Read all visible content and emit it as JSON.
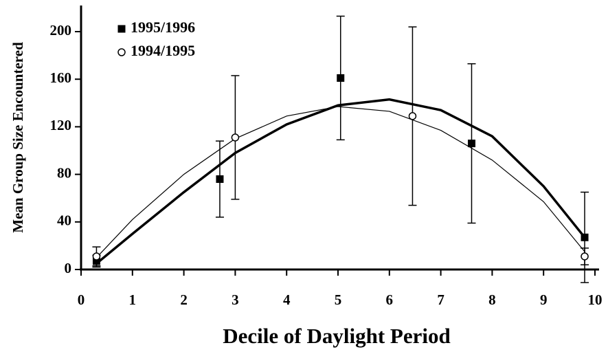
{
  "chart_data": {
    "type": "scatter",
    "x_label": "Decile of Daylight Period",
    "y_label": "Mean Group Size Encountered",
    "xlim": [
      0,
      10
    ],
    "xticks": [
      0,
      1,
      2,
      3,
      4,
      5,
      6,
      7,
      8,
      9,
      10
    ],
    "ylim": [
      0,
      200
    ],
    "yticks": [
      0,
      40,
      80,
      120,
      160,
      200
    ],
    "legend": "upper left",
    "series": [
      {
        "name": "1995/1996",
        "color": "#000000",
        "marker": "square",
        "x": [
          0.3,
          2.7,
          5.05,
          7.6,
          9.8
        ],
        "values": [
          7,
          76,
          161,
          106,
          27
        ],
        "errors": [
          5,
          32,
          52,
          67,
          38
        ],
        "fit": {
          "x": [
            0.3,
            1,
            2,
            3,
            4,
            5,
            6,
            7,
            8,
            9,
            9.8
          ],
          "y": [
            5,
            30,
            65,
            98,
            122,
            138,
            143,
            134,
            112,
            70,
            27
          ]
        }
      },
      {
        "name": "1994/1995",
        "color": "#000000",
        "marker": "circle",
        "x": [
          0.3,
          3.0,
          6.45,
          9.8
        ],
        "values": [
          11,
          111,
          129,
          11
        ],
        "errors": [
          8,
          52,
          75,
          7
        ],
        "fit": {
          "x": [
            0.3,
            1,
            2,
            3,
            4,
            5,
            6,
            7,
            8,
            9,
            9.8
          ],
          "y": [
            10,
            42,
            80,
            110,
            129,
            137,
            133,
            117,
            92,
            57,
            15
          ]
        }
      }
    ]
  }
}
